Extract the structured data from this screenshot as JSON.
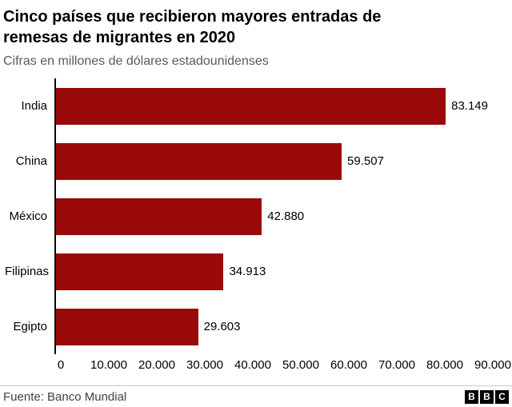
{
  "header": {
    "title_lines": [
      "Cinco países que recibieron mayores entradas de",
      "remesas de migrantes en 2020"
    ],
    "subtitle": "Cifras en millones de dólares estadounidenses"
  },
  "chart_data": {
    "type": "bar",
    "orientation": "horizontal",
    "title": "Cinco países que recibieron mayores entradas de remesas de migrantes en 2020",
    "subtitle": "Cifras en millones de dólares estadounidenses",
    "categories": [
      "India",
      "China",
      "México",
      "Filipinas",
      "Egipto"
    ],
    "values": [
      83149,
      59507,
      42880,
      34913,
      29603
    ],
    "value_labels": [
      "83.149",
      "59.507",
      "42.880",
      "34.913",
      "29.603"
    ],
    "xlim": [
      0,
      90000
    ],
    "x_ticks": [
      0,
      10000,
      20000,
      30000,
      40000,
      50000,
      60000,
      70000,
      80000,
      90000
    ],
    "x_tick_labels": [
      "0",
      "10.000",
      "20.000",
      "30.000",
      "40.000",
      "50.000",
      "60.000",
      "70.000",
      "80.000",
      "90.000"
    ],
    "xlabel": "",
    "ylabel": "",
    "grid": false,
    "legend": false,
    "bar_color": "#9a0a0a",
    "axis_color": "#000000"
  },
  "footer": {
    "source": "Fuente: Banco Mundial",
    "logo_letters": [
      "B",
      "B",
      "C"
    ]
  }
}
